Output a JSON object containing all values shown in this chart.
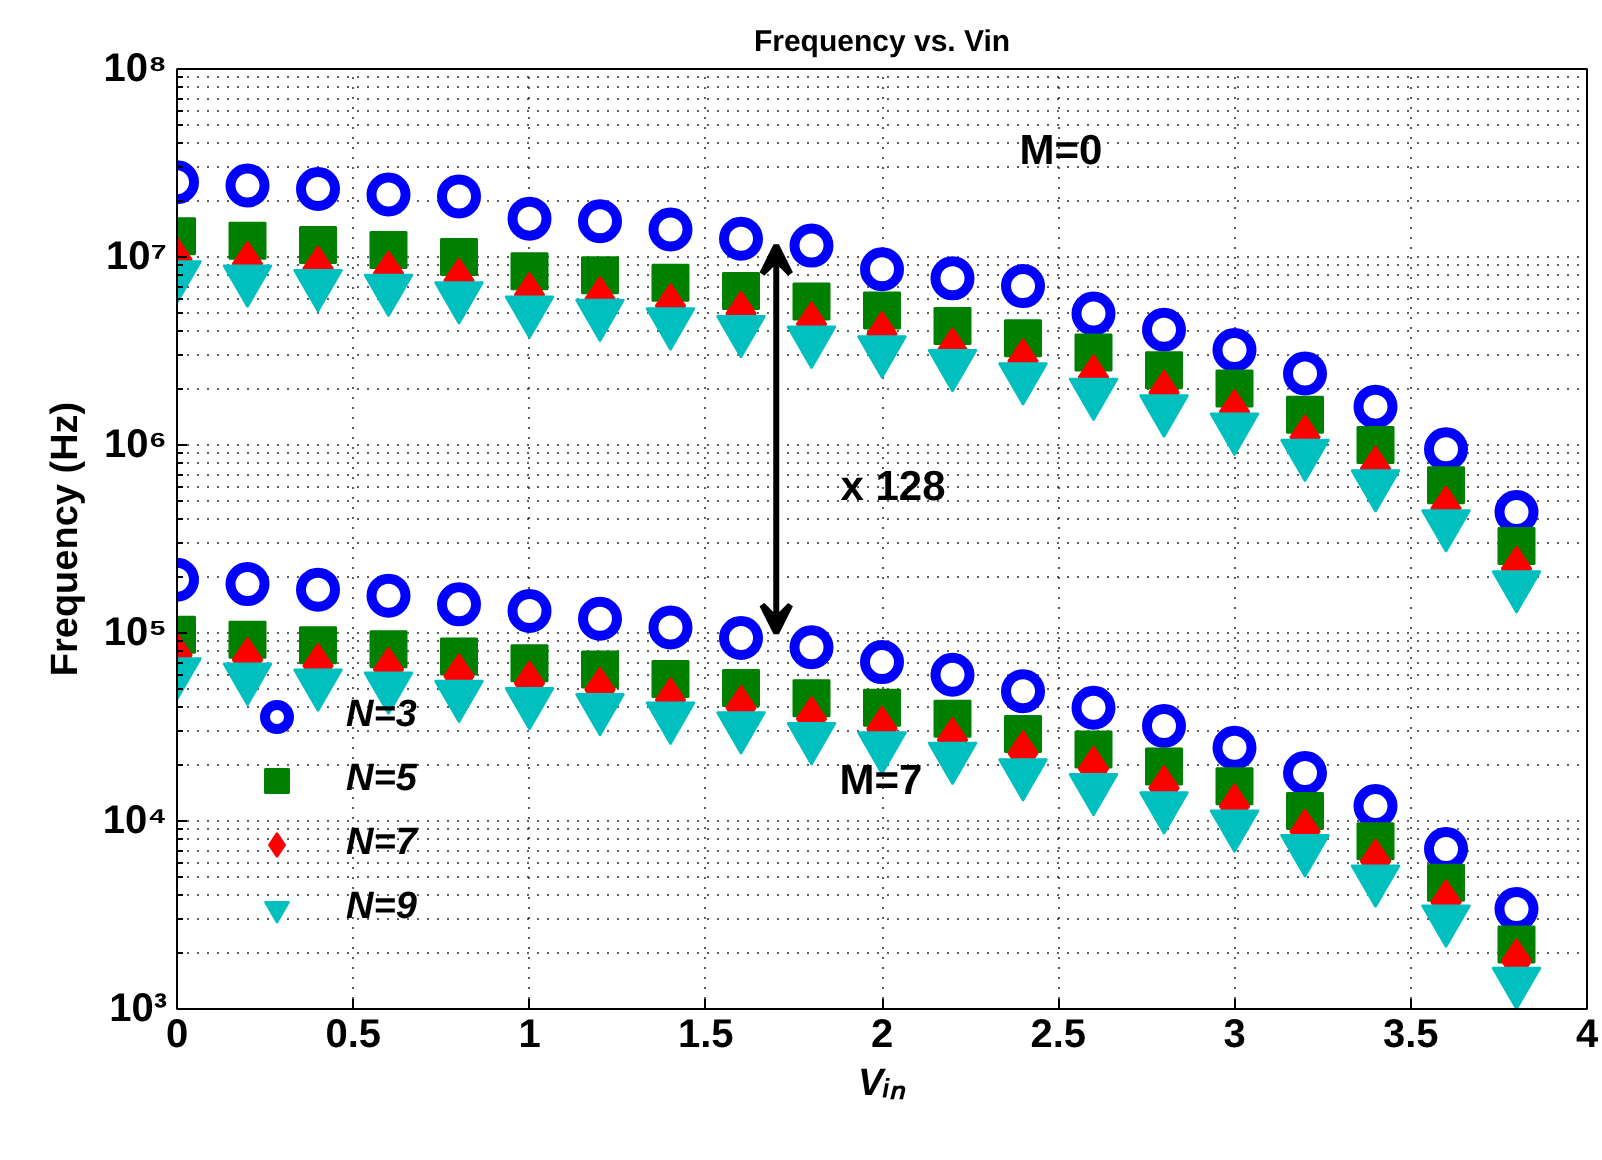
{
  "chart_data": {
    "type": "scatter",
    "title": "Frequency vs. Vin",
    "xlabel": "Vᵢₙ",
    "ylabel": "Frequency (Hz)",
    "log": "y",
    "grid": true,
    "legend": "bottom left",
    "xlim": [
      0,
      4
    ],
    "xticks": [
      0,
      0.5,
      1,
      1.5,
      2,
      2.5,
      3,
      3.5,
      4
    ],
    "ylim": [
      1000,
      100000000
    ],
    "yticks": [
      {
        "value": 1000,
        "label": "10³"
      },
      {
        "value": 10000,
        "label": "10⁴"
      },
      {
        "value": 100000,
        "label": "10⁵"
      },
      {
        "value": 1000000,
        "label": "10⁶"
      },
      {
        "value": 10000000,
        "label": "10⁷"
      },
      {
        "value": 100000000,
        "label": "10⁸"
      }
    ],
    "annotations": [
      "M=0",
      "M=7",
      "x 128"
    ],
    "series": [
      {
        "name": "N=3",
        "color": "#0000ff",
        "marker": "circle",
        "x": [
          0,
          0.2,
          0.4,
          0.6,
          0.8,
          1,
          1.2,
          1.4,
          1.6,
          1.8,
          2,
          2.2,
          2.4,
          2.6,
          2.8,
          3,
          3.2,
          3.4,
          3.6,
          3.8,
          0,
          0.2,
          0.4,
          0.6,
          0.8,
          1,
          1.2,
          1.4,
          1.6,
          1.8,
          2,
          2.2,
          2.4,
          2.6,
          2.8,
          3,
          3.2,
          3.4,
          3.6,
          3.8
        ],
        "values": [
          25000000,
          24000000,
          23000000,
          21500000,
          21000000,
          16000000,
          15500000,
          14000000,
          12500000,
          11500000,
          8600000,
          7700000,
          7000000,
          5000000,
          4100000,
          3200000,
          2400000,
          1600000,
          950000,
          440000,
          192000,
          182000,
          170000,
          158000,
          142000,
          131000,
          119000,
          107000,
          94000,
          84000,
          70000,
          60000,
          49000,
          40000,
          32000,
          24500,
          18000,
          12000,
          7100,
          3400
        ]
      },
      {
        "name": "N=5",
        "color": "#008000",
        "marker": "square",
        "x": [
          0,
          0.2,
          0.4,
          0.6,
          0.8,
          1,
          1.2,
          1.4,
          1.6,
          1.8,
          2,
          2.2,
          2.4,
          2.6,
          2.8,
          3,
          3.2,
          3.4,
          3.6,
          3.8,
          0,
          0.2,
          0.4,
          0.6,
          0.8,
          1,
          1.2,
          1.4,
          1.6,
          1.8,
          2,
          2.2,
          2.4,
          2.6,
          2.8,
          3,
          3.2,
          3.4,
          3.6,
          3.8
        ],
        "values": [
          12900000,
          12200000,
          11600000,
          10900000,
          10000000,
          8400000,
          8000000,
          7300000,
          6600000,
          5800000,
          5200000,
          4300000,
          3700000,
          3100000,
          2500000,
          2000000,
          1450000,
          1000000,
          610000,
          290000,
          98000,
          92000,
          86000,
          82000,
          75000,
          69000,
          64000,
          57000,
          51000,
          45000,
          40000,
          35000,
          29000,
          24000,
          19500,
          15300,
          11300,
          7800,
          4700,
          2200
        ]
      },
      {
        "name": "N=7",
        "color": "#ff0000",
        "marker": "diamond",
        "x": [
          0,
          0.2,
          0.4,
          0.6,
          0.8,
          1,
          1.2,
          1.4,
          1.6,
          1.8,
          2,
          2.2,
          2.4,
          2.6,
          2.8,
          3,
          3.2,
          3.4,
          3.6,
          3.8,
          0,
          0.2,
          0.4,
          0.6,
          0.8,
          1,
          1.2,
          1.4,
          1.6,
          1.8,
          2,
          2.2,
          2.4,
          2.6,
          2.8,
          3,
          3.2,
          3.4,
          3.6,
          3.8
        ],
        "values": [
          9700000,
          9200000,
          8700000,
          8200000,
          7500000,
          6300000,
          6000000,
          5500000,
          5000000,
          4400000,
          3900000,
          3200000,
          2800000,
          2300000,
          1900000,
          1500000,
          1100000,
          750000,
          460000,
          220000,
          76000,
          72000,
          67000,
          64000,
          59000,
          54000,
          50000,
          44000,
          40000,
          35000,
          31000,
          27000,
          23000,
          19000,
          15000,
          12000,
          8800,
          6100,
          3700,
          1800
        ]
      },
      {
        "name": "N=9",
        "color": "#00bfbf",
        "marker": "triangle",
        "x": [
          0,
          0.2,
          0.4,
          0.6,
          0.8,
          1,
          1.2,
          1.4,
          1.6,
          1.8,
          2,
          2.2,
          2.4,
          2.6,
          2.8,
          3,
          3.2,
          3.4,
          3.6,
          3.8,
          0,
          0.2,
          0.4,
          0.6,
          0.8,
          1,
          1.2,
          1.4,
          1.6,
          1.8,
          2,
          2.2,
          2.4,
          2.6,
          2.8,
          3,
          3.2,
          3.4,
          3.6,
          3.8
        ],
        "values": [
          8000000,
          7600000,
          7200000,
          6800000,
          6200000,
          5200000,
          5000000,
          4500000,
          4100000,
          3600000,
          3200000,
          2700000,
          2300000,
          1900000,
          1550000,
          1240000,
          900000,
          620000,
          380000,
          180000,
          62000,
          58000,
          54000,
          52000,
          47000,
          43000,
          40000,
          36000,
          32000,
          28000,
          25000,
          22000,
          18000,
          15000,
          12000,
          9600,
          7100,
          4900,
          3000,
          1400
        ]
      }
    ]
  }
}
